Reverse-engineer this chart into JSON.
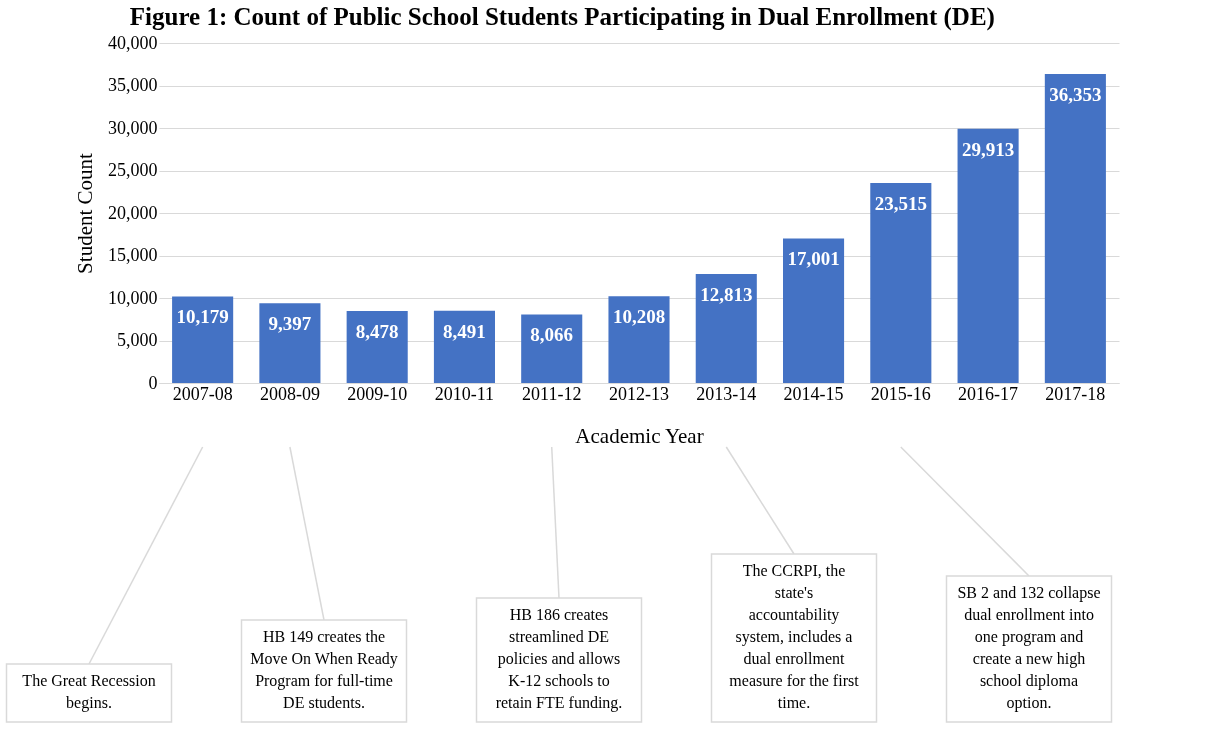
{
  "chart_data": {
    "type": "bar",
    "title": "Figure 1: Count of Public School Students Participating in Dual Enrollment (DE)",
    "xlabel": "Academic Year",
    "ylabel": "Student Count",
    "categories": [
      "2007-08",
      "2008-09",
      "2009-10",
      "2010-11",
      "2011-12",
      "2012-13",
      "2013-14",
      "2014-15",
      "2015-16",
      "2016-17",
      "2017-18"
    ],
    "values": [
      10179,
      9397,
      8478,
      8491,
      8066,
      10208,
      12813,
      17001,
      23515,
      29913,
      36353
    ],
    "color": "#4472c4",
    "value_labels": [
      "10,179",
      "9,397",
      "8,478",
      "8,491",
      "8,066",
      "10,208",
      "12,813",
      "17,001",
      "23,515",
      "29,913",
      "36,353"
    ],
    "ylim": [
      0,
      40000
    ],
    "yticks": [
      0,
      {
        "value": 5000,
        "label": "5,000"
      },
      {
        "value": 10000,
        "label": "10,000"
      },
      {
        "value": 15000,
        "label": "15,000"
      },
      {
        "value": 20000,
        "label": "20,000"
      },
      {
        "value": 25000,
        "label": "25,000"
      },
      {
        "value": 30000,
        "label": "30,000"
      },
      {
        "value": 35000,
        "label": "35,000"
      },
      {
        "value": 40000,
        "label": "40,000"
      }
    ],
    "grid": "y",
    "annotations": [
      {
        "text": "The Great Recession begins.",
        "x": "2007-08"
      },
      {
        "text": "HB 149 creates the Move On When Ready Program for full-time DE students.",
        "x": "2008-09"
      },
      {
        "text": "HB 186 creates streamlined DE policies and allows K-12 schools to retain FTE funding.",
        "x": "2011-12"
      },
      {
        "text": "The CCRPI, the state's accountability system, includes a dual enrollment measure for the first time.",
        "x": "2013-14"
      },
      {
        "text": "SB 2 and 132 collapse dual enrollment into one program and create a new high school diploma option.",
        "x": "2015-16"
      }
    ]
  }
}
